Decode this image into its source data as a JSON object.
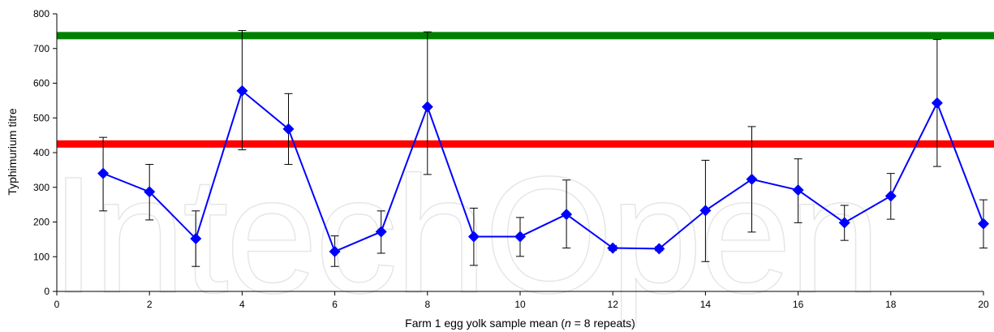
{
  "watermark": "IntechOpen",
  "chart_data": {
    "type": "line",
    "xlabel_prefix": "Farm 1 egg yolk sample mean (",
    "xlabel_n": "n",
    "xlabel_suffix": " = 8 repeats)",
    "ylabel": "Typhimurium titre",
    "xlim": [
      0,
      20
    ],
    "ylim": [
      0,
      800
    ],
    "x_ticks": [
      0,
      2,
      4,
      6,
      8,
      10,
      12,
      14,
      16,
      18,
      20
    ],
    "y_ticks": [
      0,
      100,
      200,
      300,
      400,
      500,
      600,
      700,
      800
    ],
    "grid": false,
    "series": [
      {
        "color": "#0000ff",
        "marker": "diamond",
        "points": [
          {
            "x": 1,
            "y": 340,
            "err_low": 232,
            "err_high": 444
          },
          {
            "x": 2,
            "y": 287,
            "err_low": 206,
            "err_high": 366
          },
          {
            "x": 3,
            "y": 152,
            "err_low": 72,
            "err_high": 232
          },
          {
            "x": 4,
            "y": 578,
            "err_low": 408,
            "err_high": 752
          },
          {
            "x": 5,
            "y": 468,
            "err_low": 366,
            "err_high": 570
          },
          {
            "x": 6,
            "y": 115,
            "err_low": 72,
            "err_high": 160
          },
          {
            "x": 7,
            "y": 172,
            "err_low": 110,
            "err_high": 232
          },
          {
            "x": 8,
            "y": 532,
            "err_low": 337,
            "err_high": 748
          },
          {
            "x": 9,
            "y": 158,
            "err_low": 75,
            "err_high": 240
          },
          {
            "x": 10,
            "y": 158,
            "err_low": 101,
            "err_high": 213
          },
          {
            "x": 11,
            "y": 222,
            "err_low": 125,
            "err_high": 321
          },
          {
            "x": 12,
            "y": 125,
            "err_low": 118,
            "err_high": 132
          },
          {
            "x": 13,
            "y": 123,
            "err_low": 117,
            "err_high": 129
          },
          {
            "x": 14,
            "y": 233,
            "err_low": 86,
            "err_high": 378
          },
          {
            "x": 15,
            "y": 323,
            "err_low": 171,
            "err_high": 475
          },
          {
            "x": 16,
            "y": 292,
            "err_low": 198,
            "err_high": 382
          },
          {
            "x": 17,
            "y": 198,
            "err_low": 147,
            "err_high": 248
          },
          {
            "x": 18,
            "y": 275,
            "err_low": 208,
            "err_high": 340
          },
          {
            "x": 19,
            "y": 543,
            "err_low": 360,
            "err_high": 726
          },
          {
            "x": 20,
            "y": 195,
            "err_low": 125,
            "err_high": 264
          }
        ]
      }
    ],
    "reference_lines": [
      {
        "y": 737,
        "color": "#008000"
      },
      {
        "y": 425,
        "color": "#ff0000"
      }
    ]
  }
}
